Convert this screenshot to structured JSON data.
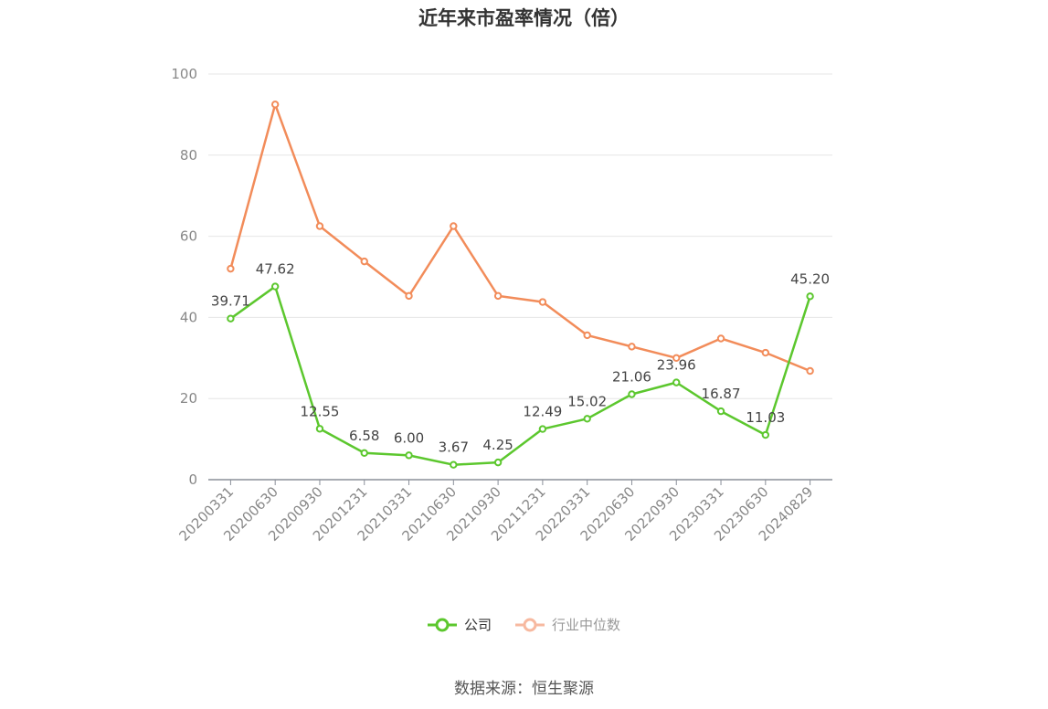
{
  "chart_data": {
    "type": "line",
    "title": "近年来市盈率情况（倍）",
    "categories": [
      "20200331",
      "20200630",
      "20200930",
      "20201231",
      "20210331",
      "20210630",
      "20210930",
      "20211231",
      "20220331",
      "20220630",
      "20220930",
      "20230331",
      "20230630",
      "20240829"
    ],
    "ylim": [
      0,
      100
    ],
    "yticks": [
      0,
      20,
      40,
      60,
      80,
      100
    ],
    "grid": true,
    "legend_position": "bottom",
    "series": [
      {
        "name": "公司",
        "color": "#5cc72e",
        "values": [
          39.71,
          47.62,
          12.55,
          6.58,
          6.0,
          3.67,
          4.25,
          12.49,
          15.02,
          21.06,
          23.96,
          16.87,
          11.03,
          45.2
        ],
        "labels": [
          "39.71",
          "47.62",
          "12.55",
          "6.58",
          "6.00",
          "3.67",
          "4.25",
          "12.49",
          "15.02",
          "21.06",
          "23.96",
          "16.87",
          "11.03",
          "45.20"
        ]
      },
      {
        "name": "行业中位数",
        "color": "#f28c5a",
        "legend_color": "#f7b9a0",
        "values": [
          52.0,
          92.5,
          62.5,
          53.8,
          45.3,
          62.5,
          45.3,
          43.8,
          35.6,
          32.8,
          30.0,
          34.8,
          31.3,
          26.8
        ]
      }
    ]
  },
  "source": "数据来源：恒生聚源"
}
